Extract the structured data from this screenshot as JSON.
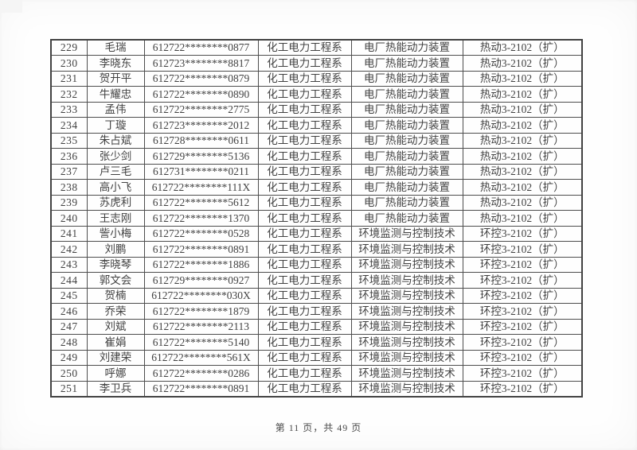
{
  "page": {
    "footer": "第 11 页，共 49 页"
  },
  "table": {
    "rows": [
      {
        "no": "229",
        "name": "毛瑞",
        "id": "612722********0877",
        "dept": "化工电力工程系",
        "major": "电厂热能动力装置",
        "cls": "热动3-2102（扩）"
      },
      {
        "no": "230",
        "name": "李晓东",
        "id": "612723********8817",
        "dept": "化工电力工程系",
        "major": "电厂热能动力装置",
        "cls": "热动3-2102（扩）"
      },
      {
        "no": "231",
        "name": "贺开平",
        "id": "612722********0879",
        "dept": "化工电力工程系",
        "major": "电厂热能动力装置",
        "cls": "热动3-2102（扩）"
      },
      {
        "no": "232",
        "name": "牛耀忠",
        "id": "612722********0890",
        "dept": "化工电力工程系",
        "major": "电厂热能动力装置",
        "cls": "热动3-2102（扩）"
      },
      {
        "no": "233",
        "name": "孟伟",
        "id": "612722********2775",
        "dept": "化工电力工程系",
        "major": "电厂热能动力装置",
        "cls": "热动3-2102（扩）"
      },
      {
        "no": "234",
        "name": "丁璇",
        "id": "612723********2012",
        "dept": "化工电力工程系",
        "major": "电厂热能动力装置",
        "cls": "热动3-2102（扩）"
      },
      {
        "no": "235",
        "name": "朱占斌",
        "id": "612728********0611",
        "dept": "化工电力工程系",
        "major": "电厂热能动力装置",
        "cls": "热动3-2102（扩）"
      },
      {
        "no": "236",
        "name": "张少剑",
        "id": "612729********5136",
        "dept": "化工电力工程系",
        "major": "电厂热能动力装置",
        "cls": "热动3-2102（扩）"
      },
      {
        "no": "237",
        "name": "卢三毛",
        "id": "612731********0211",
        "dept": "化工电力工程系",
        "major": "电厂热能动力装置",
        "cls": "热动3-2102（扩）"
      },
      {
        "no": "238",
        "name": "高小飞",
        "id": "612722********111X",
        "dept": "化工电力工程系",
        "major": "电厂热能动力装置",
        "cls": "热动3-2102（扩）"
      },
      {
        "no": "239",
        "name": "苏虎利",
        "id": "612722********5612",
        "dept": "化工电力工程系",
        "major": "电厂热能动力装置",
        "cls": "热动3-2102（扩）"
      },
      {
        "no": "240",
        "name": "王志刚",
        "id": "612722********1370",
        "dept": "化工电力工程系",
        "major": "电厂热能动力装置",
        "cls": "热动3-2102（扩）"
      },
      {
        "no": "241",
        "name": "訾小梅",
        "id": "612722********0528",
        "dept": "化工电力工程系",
        "major": "环境监测与控制技术",
        "cls": "环控3-2102（扩）"
      },
      {
        "no": "242",
        "name": "刘鹏",
        "id": "612722********0891",
        "dept": "化工电力工程系",
        "major": "环境监测与控制技术",
        "cls": "环控3-2102（扩）"
      },
      {
        "no": "243",
        "name": "李晓琴",
        "id": "612722********1886",
        "dept": "化工电力工程系",
        "major": "环境监测与控制技术",
        "cls": "环控3-2102（扩）"
      },
      {
        "no": "244",
        "name": "郭文会",
        "id": "612729********0927",
        "dept": "化工电力工程系",
        "major": "环境监测与控制技术",
        "cls": "环控3-2102（扩）"
      },
      {
        "no": "245",
        "name": "贺楠",
        "id": "612722********030X",
        "dept": "化工电力工程系",
        "major": "环境监测与控制技术",
        "cls": "环控3-2102（扩）"
      },
      {
        "no": "246",
        "name": "乔荣",
        "id": "612722********1879",
        "dept": "化工电力工程系",
        "major": "环境监测与控制技术",
        "cls": "环控3-2102（扩）"
      },
      {
        "no": "247",
        "name": "刘斌",
        "id": "612722********2113",
        "dept": "化工电力工程系",
        "major": "环境监测与控制技术",
        "cls": "环控3-2102（扩）"
      },
      {
        "no": "248",
        "name": "崔娟",
        "id": "612722********5140",
        "dept": "化工电力工程系",
        "major": "环境监测与控制技术",
        "cls": "环控3-2102（扩）"
      },
      {
        "no": "249",
        "name": "刘建荣",
        "id": "612722********561X",
        "dept": "化工电力工程系",
        "major": "环境监测与控制技术",
        "cls": "环控3-2102（扩）"
      },
      {
        "no": "250",
        "name": "呼娜",
        "id": "612722********0286",
        "dept": "化工电力工程系",
        "major": "环境监测与控制技术",
        "cls": "环控3-2102（扩）"
      },
      {
        "no": "251",
        "name": "李卫兵",
        "id": "612722********0891",
        "dept": "化工电力工程系",
        "major": "环境监测与控制技术",
        "cls": "环控3-2102（扩）"
      }
    ]
  }
}
